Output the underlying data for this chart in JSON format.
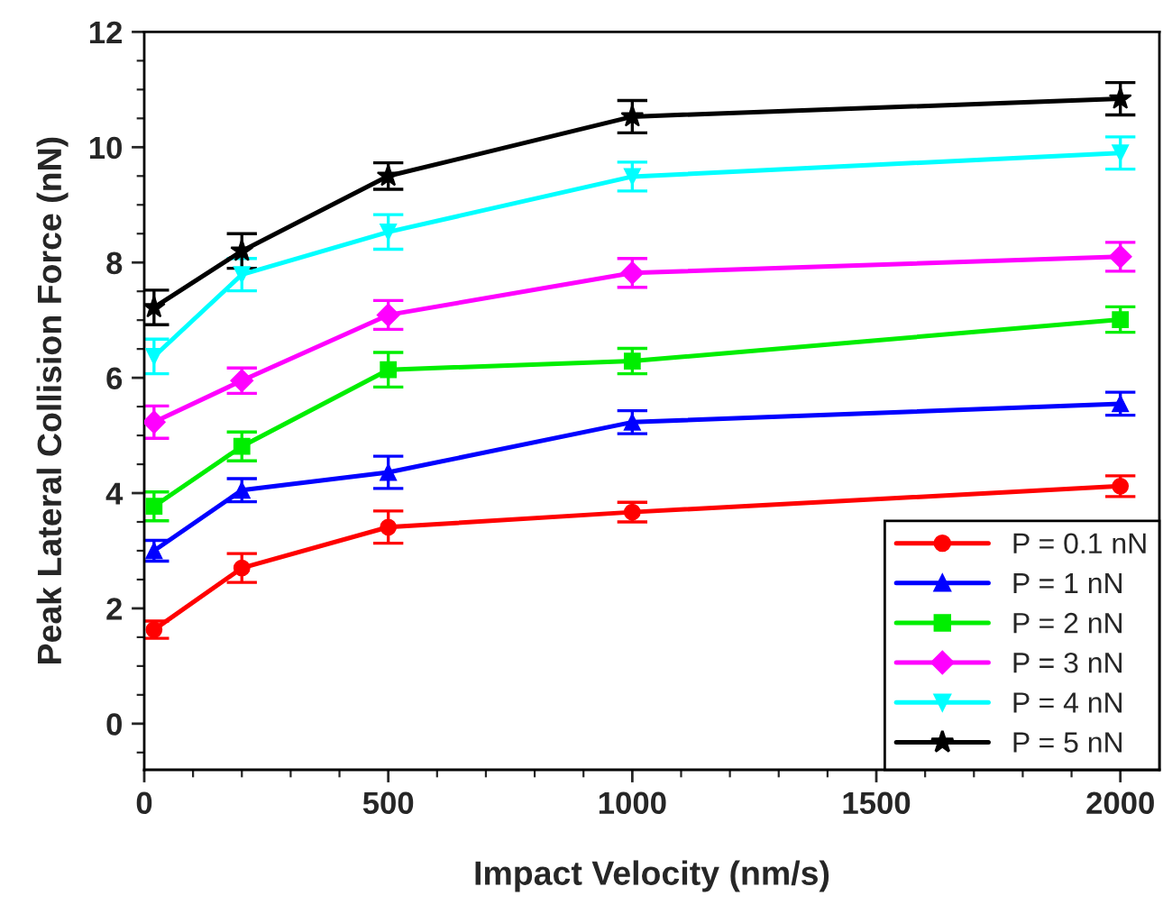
{
  "chart_data": {
    "type": "line",
    "xlabel": "Impact Velocity (nm/s)",
    "ylabel": "Peak Lateral Collision Force (nN)",
    "x": [
      20,
      200,
      500,
      1000,
      2000
    ],
    "series": [
      {
        "name": "P = 0.1 nN",
        "color": "#ff0000",
        "marker": "circle",
        "values": [
          1.63,
          2.7,
          3.41,
          3.67,
          4.12
        ],
        "errors": [
          0.15,
          0.25,
          0.28,
          0.17,
          0.18
        ]
      },
      {
        "name": "P = 1 nN",
        "color": "#0000ff",
        "marker": "triangle",
        "values": [
          3.0,
          4.05,
          4.36,
          5.23,
          5.55
        ],
        "errors": [
          0.18,
          0.2,
          0.28,
          0.2,
          0.2
        ]
      },
      {
        "name": "P = 2 nN",
        "color": "#00ee00",
        "marker": "square",
        "values": [
          3.77,
          4.81,
          6.14,
          6.29,
          7.01
        ],
        "errors": [
          0.25,
          0.25,
          0.3,
          0.22,
          0.22
        ]
      },
      {
        "name": "P = 3 nN",
        "color": "#ff00ff",
        "marker": "diamond",
        "values": [
          5.23,
          5.95,
          7.09,
          7.82,
          8.1
        ],
        "errors": [
          0.28,
          0.22,
          0.25,
          0.25,
          0.25
        ]
      },
      {
        "name": "P = 4 nN",
        "color": "#00ffff",
        "marker": "triangle_down",
        "values": [
          6.37,
          7.79,
          8.53,
          9.49,
          9.9
        ],
        "errors": [
          0.3,
          0.28,
          0.3,
          0.25,
          0.28
        ]
      },
      {
        "name": "P = 5 nN",
        "color": "#000000",
        "marker": "star",
        "values": [
          7.22,
          8.2,
          9.5,
          10.53,
          10.84
        ],
        "errors": [
          0.3,
          0.3,
          0.23,
          0.28,
          0.28
        ]
      }
    ],
    "xlim": [
      0,
      2080
    ],
    "xticks": [
      0,
      500,
      1000,
      1500,
      2000
    ],
    "ylim": [
      -0.8,
      12
    ],
    "yticks": [
      0,
      2,
      4,
      6,
      8,
      10,
      12
    ],
    "grid": false,
    "legend": "bottom right",
    "line_style": "solid"
  }
}
